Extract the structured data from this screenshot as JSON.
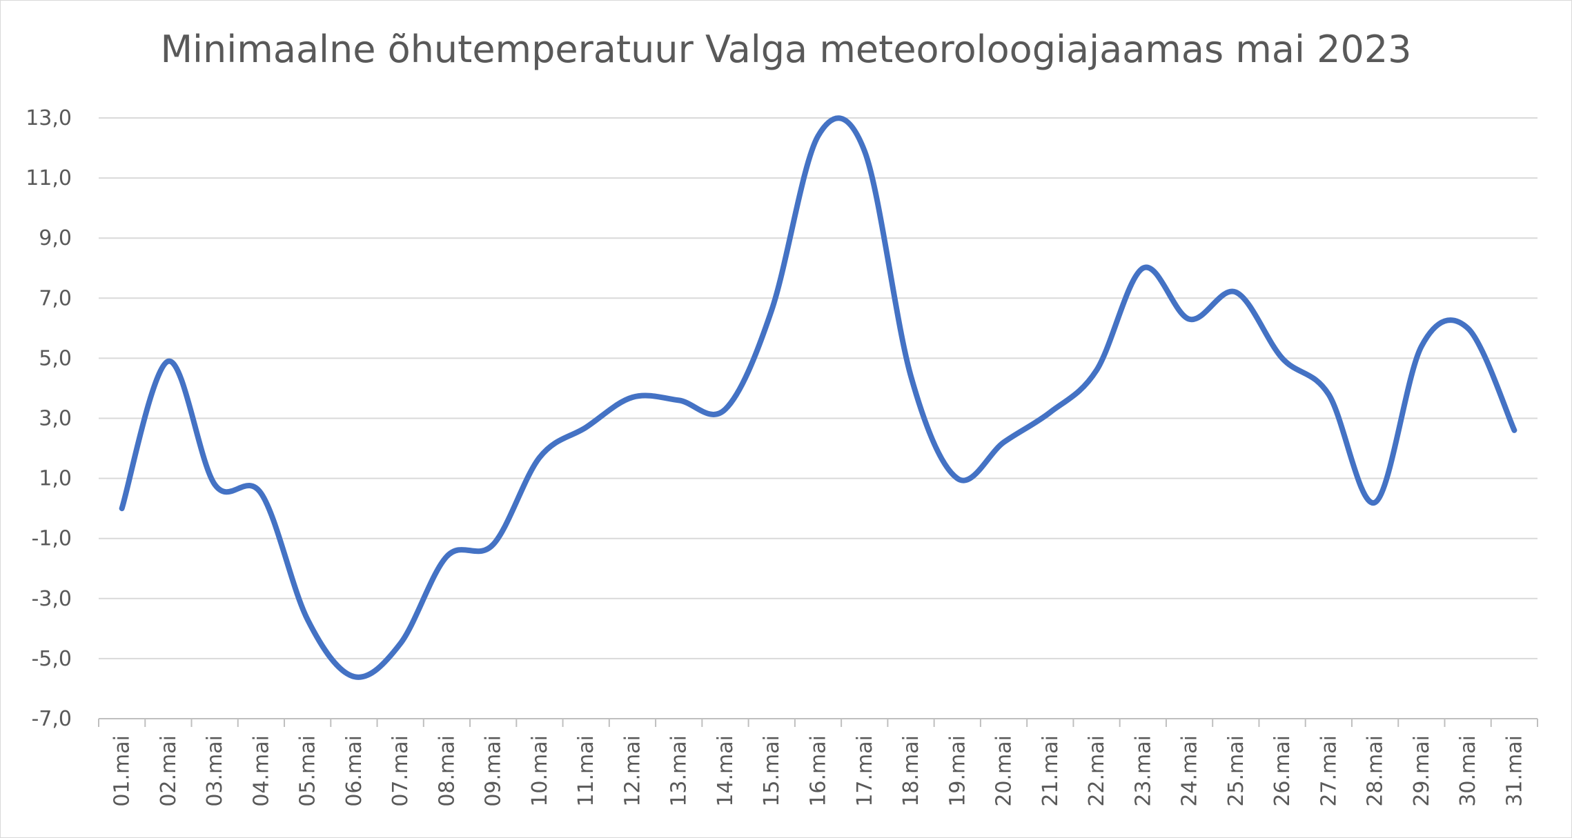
{
  "chart_data": {
    "type": "line",
    "title": "Minimaalne õhutemperatuur Valga meteoroloogiajaamas mai 2023",
    "xlabel": "",
    "ylabel": "",
    "ylim": [
      -7,
      13
    ],
    "yticks": [
      13,
      11,
      9,
      7,
      5,
      3,
      1,
      -1,
      -3,
      -5,
      -7
    ],
    "ytick_labels": [
      "13,0",
      "11,0",
      "9,0",
      "7,0",
      "5,0",
      "3,0",
      "1,0",
      "-1,0",
      "-3,0",
      "-5,0",
      "-7,0"
    ],
    "grid": true,
    "legend": "none",
    "line_color": "#4472C4",
    "categories": [
      "01.mai",
      "02.mai",
      "03.mai",
      "04.mai",
      "05.mai",
      "06.mai",
      "07.mai",
      "08.mai",
      "09.mai",
      "10.mai",
      "11.mai",
      "12.mai",
      "13.mai",
      "14.mai",
      "15.mai",
      "16.mai",
      "17.mai",
      "18.mai",
      "19.mai",
      "20.mai",
      "21.mai",
      "22.mai",
      "23.mai",
      "24.mai",
      "25.mai",
      "26.mai",
      "27.mai",
      "28.mai",
      "29.mai",
      "30.mai",
      "31.mai"
    ],
    "series": [
      {
        "values": [
          0.0,
          4.9,
          0.8,
          0.5,
          -3.7,
          -5.6,
          -4.5,
          -1.6,
          -1.2,
          1.7,
          2.7,
          3.7,
          3.6,
          3.3,
          6.6,
          12.4,
          11.9,
          4.4,
          1.0,
          2.2,
          3.2,
          4.6,
          8.0,
          6.3,
          7.2,
          5.0,
          3.8,
          0.2,
          5.4,
          6.0,
          2.6
        ]
      }
    ]
  }
}
